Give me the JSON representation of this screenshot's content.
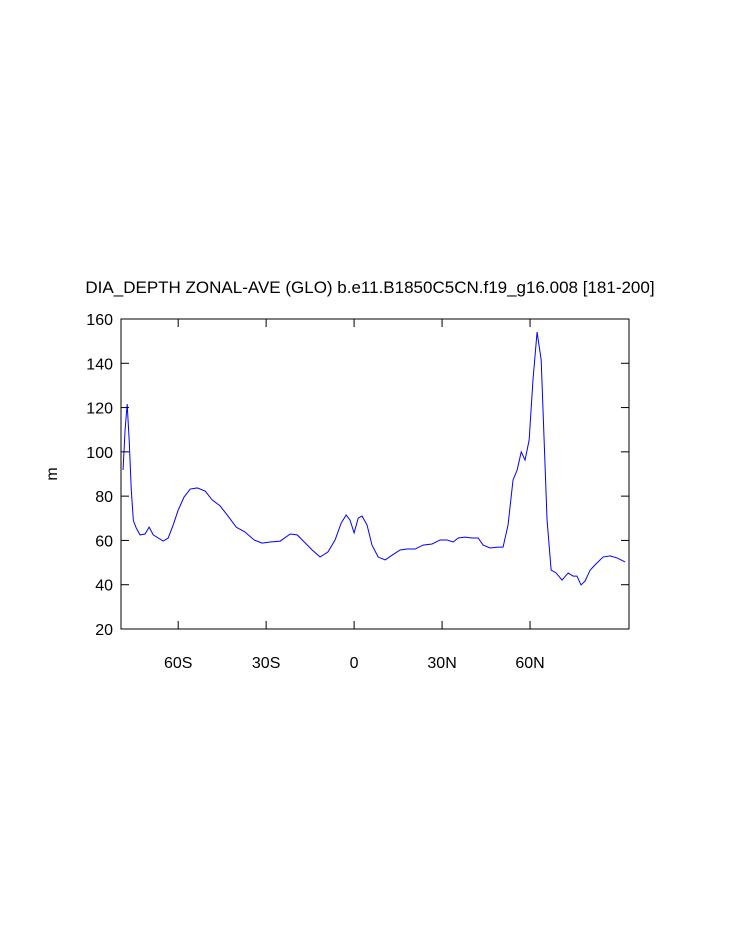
{
  "chart_data": {
    "type": "line",
    "title": "DIA_DEPTH ZONAL-AVE (GLO) b.e11.B1850C5CN.f19_g16.008 [181-200]",
    "y_label": "m",
    "color": "#0000ff",
    "xlim": [
      -79.5,
      93.75
    ],
    "xticks": [
      {
        "value": -60,
        "label": "60S"
      },
      {
        "value": -30,
        "label": "30S"
      },
      0,
      {
        "value": 30,
        "label": "30N"
      },
      {
        "value": 60,
        "label": "60N"
      }
    ],
    "ylim": [
      20,
      160
    ],
    "yticks": [
      20,
      40,
      60,
      80,
      100,
      120,
      140,
      160
    ],
    "x": [
      -78.8,
      -78.1,
      -77.4,
      -76.7,
      -76,
      -75.3,
      -74.3,
      -73,
      -71.3,
      -69.9,
      -68.5,
      -66.8,
      -65.1,
      -63.4,
      -61.7,
      -60,
      -58,
      -55.9,
      -53.5,
      -50.8,
      -48.4,
      -45.7,
      -43,
      -40.2,
      -37.2,
      -34.1,
      -31.4,
      -28.6,
      -25.2,
      -21.8,
      -19.4,
      -17,
      -14.3,
      -11.6,
      -8.9,
      -6.5,
      -4.4,
      -2.7,
      -1.4,
      0,
      1.4,
      2.7,
      4.4,
      6.1,
      8.2,
      10.6,
      13,
      15.7,
      18.1,
      20.8,
      23.5,
      26.6,
      29.3,
      31.7,
      33.8,
      35.5,
      37.8,
      40.2,
      42.3,
      44,
      46.4,
      49.1,
      50.8,
      52.5,
      54.2,
      55.6,
      57,
      58.3,
      59.7,
      61,
      62.4,
      63.8,
      64.8,
      65.8,
      67.2,
      68.9,
      70.9,
      73,
      74.7,
      76,
      77.4,
      78.8,
      80.5,
      82.5,
      84.9,
      87.3,
      89.7,
      92.4
    ],
    "values": [
      91.8,
      110,
      121.6,
      105,
      83,
      69,
      65.6,
      62.5,
      62.9,
      66,
      62.5,
      61.1,
      59.7,
      61.1,
      67,
      73.7,
      79.6,
      83.2,
      83.7,
      82.3,
      78.3,
      75.6,
      71,
      66,
      63.8,
      60.2,
      58.8,
      59.3,
      59.7,
      62.9,
      62.5,
      59.3,
      55.7,
      52.5,
      54.8,
      60.2,
      67.9,
      71.5,
      69.2,
      63.4,
      70.1,
      71,
      67,
      57.9,
      52.5,
      51.2,
      53.4,
      55.7,
      56.1,
      56.1,
      57.9,
      58.4,
      60.2,
      60.2,
      59.3,
      61.1,
      61.5,
      61.1,
      61.1,
      57.9,
      56.6,
      57,
      57,
      67,
      87.3,
      91.8,
      100,
      96.3,
      105.4,
      132.5,
      154.1,
      141.5,
      105.4,
      69.2,
      46.6,
      45.3,
      42.1,
      45.3,
      43.9,
      43.9,
      39.9,
      41.7,
      46.6,
      49.4,
      52.5,
      53,
      52.1,
      50.3
    ]
  }
}
